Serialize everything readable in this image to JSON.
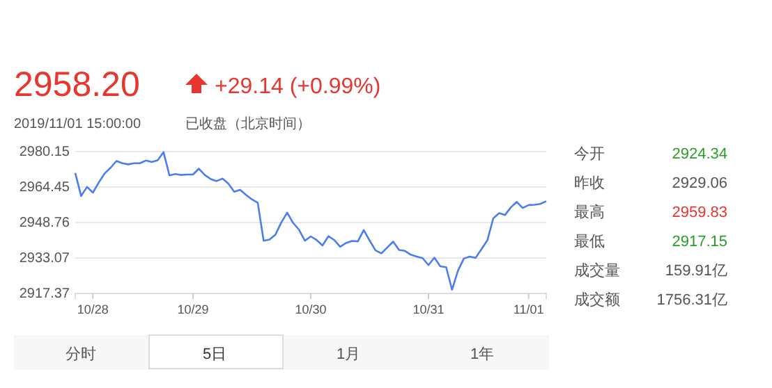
{
  "chart_data": {
    "type": "line",
    "title": "2958.20",
    "subtitle": "+29.14 (+0.99%)",
    "annotations": [
      "2019/11/01 15:00:00",
      "已收盘（北京时间）",
      "今开",
      "2924.34",
      "昨收",
      "2929.06",
      "最高",
      "2959.83",
      "最低",
      "2917.15",
      "成交量",
      "159.91亿",
      "成交额",
      "1756.31亿",
      "分时",
      "5日",
      "1月",
      "1年"
    ],
    "categories": [
      null,
      null,
      null,
      "10/28",
      null,
      null,
      null,
      null,
      null,
      null,
      null,
      null,
      null,
      null,
      null,
      null,
      null,
      null,
      null,
      null,
      "10/29",
      null,
      null,
      null,
      null,
      null,
      null,
      null,
      null,
      null,
      null,
      null,
      null,
      null,
      null,
      null,
      null,
      null,
      null,
      null,
      "10/30",
      null,
      null,
      null,
      null,
      null,
      null,
      null,
      null,
      null,
      null,
      null,
      null,
      null,
      null,
      null,
      null,
      null,
      null,
      null,
      "10/31",
      null,
      null,
      null,
      null,
      null,
      null,
      null,
      null,
      null,
      null,
      null,
      null,
      null,
      null,
      null,
      null,
      "11/01",
      null,
      null,
      null
    ],
    "ylim": [
      2917.37,
      2980.15
    ],
    "yticks": [
      2917.37,
      2933.07,
      2948.76,
      2964.45,
      2980.15
    ],
    "grid": "y",
    "marker": "none",
    "line_style": "solid",
    "series": [
      {
        "color": "#4c7df0",
        "values": [
          2970.7,
          2960.5,
          2964.5,
          2962,
          2966.5,
          2970.5,
          2973,
          2976,
          2975,
          2974.5,
          2975,
          2975,
          2976.2,
          2975.5,
          2976.3,
          2979.9,
          2969.6,
          2970.2,
          2969.8,
          2970,
          2970,
          2972.6,
          2969.8,
          2968,
          2967.1,
          2968.2,
          2966,
          2962.4,
          2963.2,
          2961,
          2959,
          2957.5,
          2940.7,
          2941.2,
          2943.4,
          2948.8,
          2953.1,
          2948.6,
          2945.6,
          2940.7,
          2942.6,
          2941,
          2938.6,
          2942.7,
          2941,
          2938,
          2939.7,
          2940.6,
          2940.4,
          2945.4,
          2940.8,
          2936.4,
          2935.1,
          2937.7,
          2940.3,
          2936.6,
          2936.2,
          2934.5,
          2933.7,
          2933,
          2929.9,
          2933.2,
          2929.4,
          2929,
          2919,
          2927.4,
          2932.8,
          2933.7,
          2933.1,
          2937,
          2940.9,
          2950.6,
          2952.9,
          2952.1,
          2955.5,
          2957.9,
          2955.2,
          2956.5,
          2956.6,
          2957,
          2958.2
        ]
      }
    ]
  }
}
